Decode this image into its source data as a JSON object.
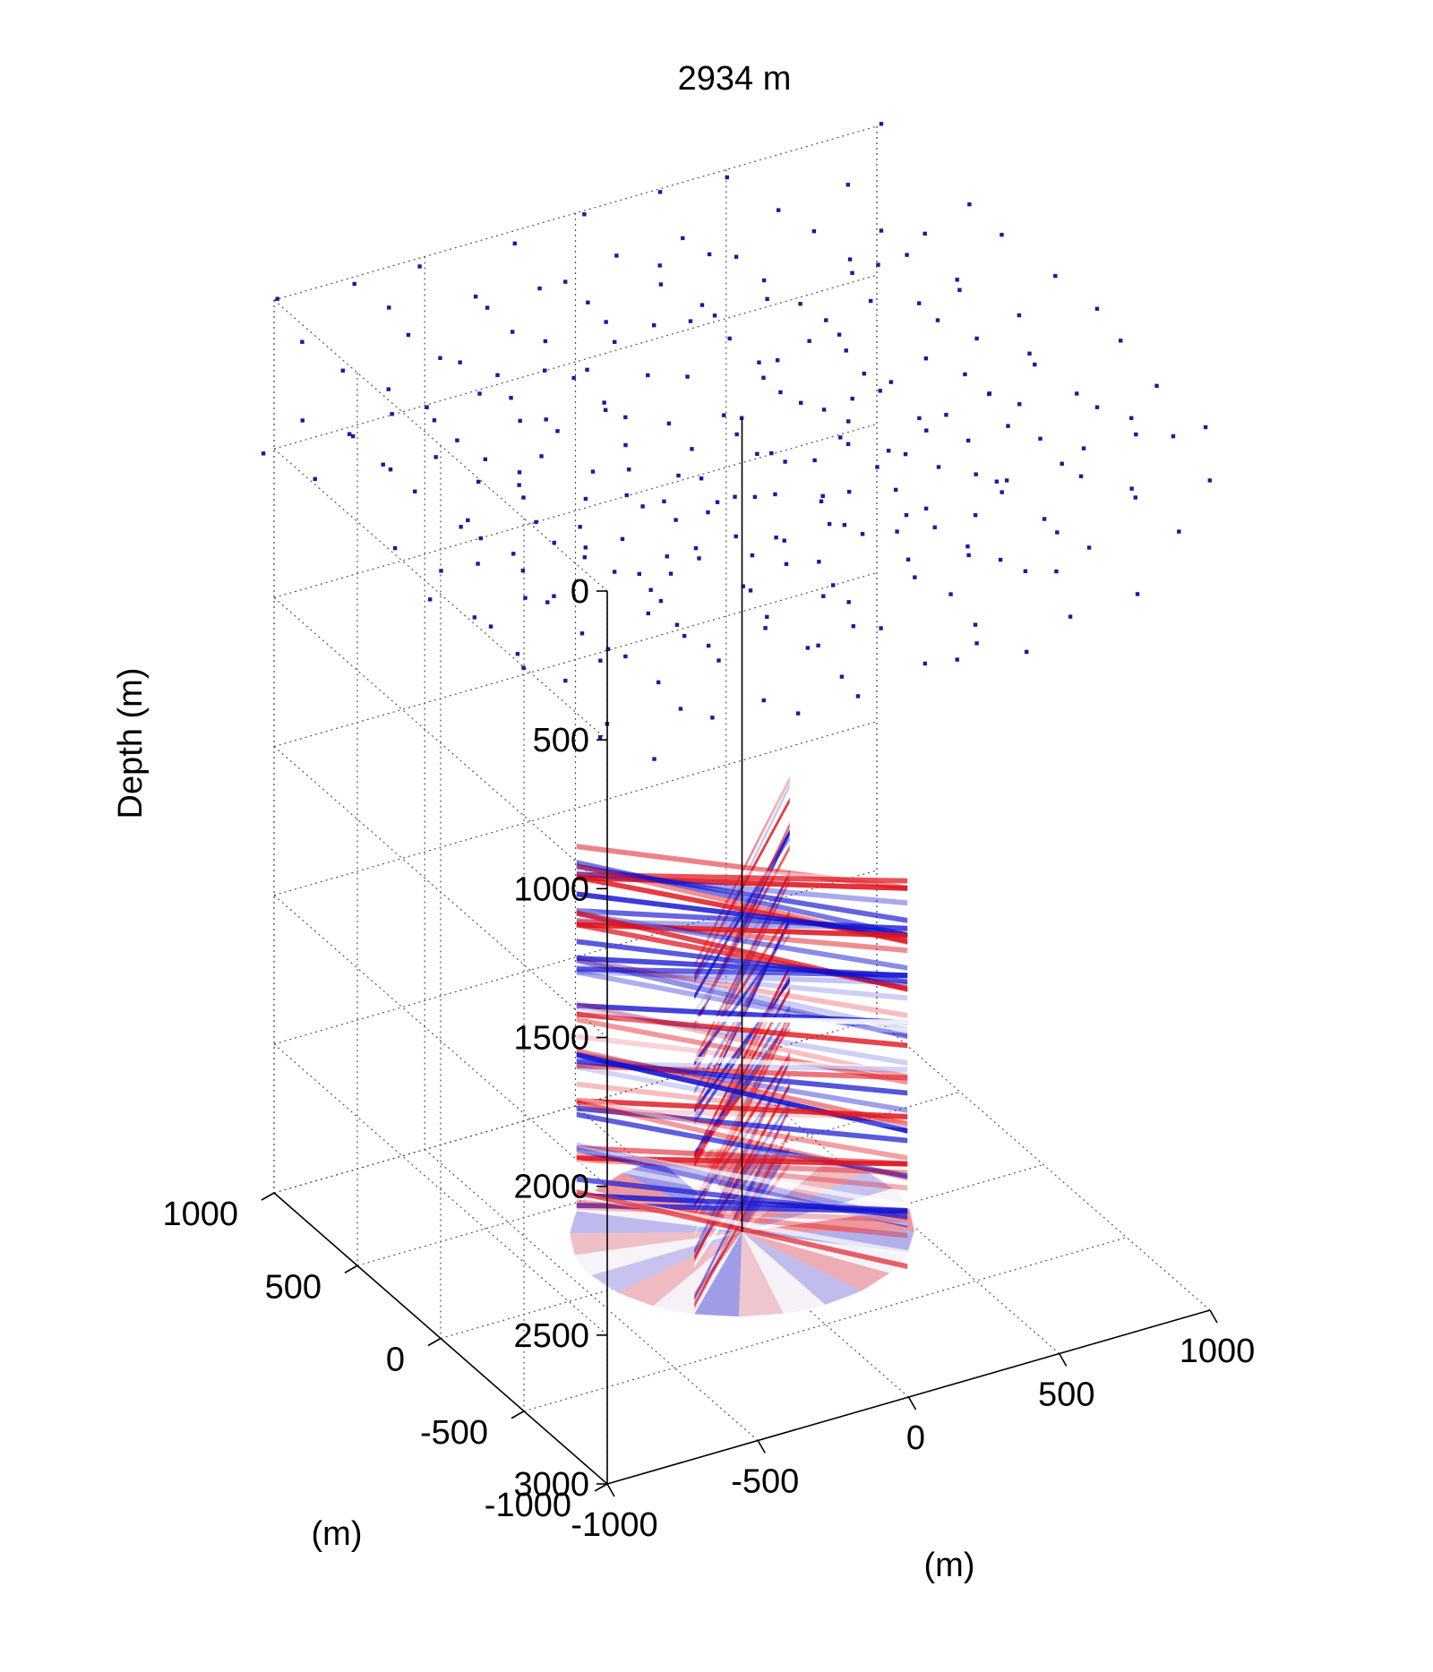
{
  "chart_data": {
    "type": "scatter",
    "title": "2934 m",
    "zlabel": "Depth (m)",
    "xlabel": "(m)",
    "ylabel": "(m)",
    "xlim": [
      -1000,
      1000
    ],
    "ylim": [
      -1000,
      1000
    ],
    "zlim": [
      0,
      3000
    ],
    "z_reversed": true,
    "xticks": [
      "-1000",
      "-500",
      "0",
      "500",
      "1000"
    ],
    "yticks": [
      "-1000",
      "-500",
      "0",
      "500",
      "1000"
    ],
    "zticks": [
      "0",
      "500",
      "1000",
      "1500",
      "2000",
      "2500",
      "3000"
    ],
    "grid": true,
    "marker_color": "#1a1aa0",
    "color_positive": "#e0101a",
    "color_negative": "#1010d0",
    "well": {
      "x": 0,
      "y": 0,
      "z_top": 200,
      "z_bottom": 2934
    },
    "image_volume": {
      "shape": "cylinder",
      "radius": 500,
      "z_top": 1700,
      "z_bottom": 2934,
      "sections": [
        "inline",
        "crossline"
      ]
    },
    "series": [
      {
        "marker": "point",
        "grid_spacing": 250,
        "layers": [
          {
            "depth": 0,
            "x_range": [
              -1000,
              1000
            ],
            "y_range": [
              -1000,
              1000
            ]
          },
          {
            "depth": 250,
            "x_range": [
              -1000,
              1000
            ],
            "y_range": [
              -1000,
              1000
            ]
          },
          {
            "depth": 500,
            "x_range": [
              -1000,
              1000
            ],
            "y_range": [
              -1000,
              1000
            ]
          },
          {
            "depth": 750,
            "x_range": [
              -750,
              750
            ],
            "y_range": [
              -750,
              750
            ]
          }
        ]
      }
    ]
  }
}
